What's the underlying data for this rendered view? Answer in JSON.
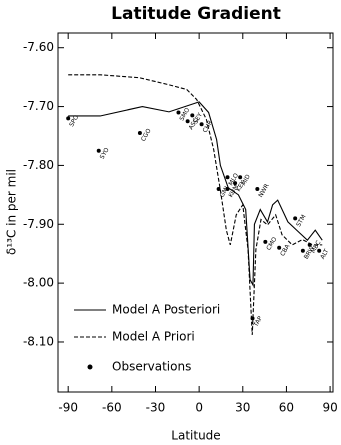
{
  "chart_data": {
    "type": "line",
    "title": "Latitude Gradient",
    "xlabel": "Latitude",
    "ylabel": "δ¹³C in per mil",
    "xlim": [
      -97,
      92
    ],
    "ylim": [
      -8.185,
      -7.575
    ],
    "xticks": [
      -90,
      -60,
      -30,
      0,
      30,
      60,
      90
    ],
    "yticks": [
      {
        "value": -7.6,
        "label": "-7.60"
      },
      {
        "value": -7.7,
        "label": "-7.70"
      },
      {
        "value": -7.8,
        "label": "-7.80"
      },
      {
        "value": -7.9,
        "label": "-7.90"
      },
      {
        "value": -8.0,
        "label": "-8.00"
      },
      {
        "value": -8.1,
        "label": "-8.10"
      }
    ],
    "legend": "lower left",
    "series": [
      {
        "name": "Model A Posteriori",
        "color": "#000000",
        "style": "solid",
        "x": [
          -90,
          -68,
          -39,
          -20.7,
          0,
          6.5,
          12,
          14.6,
          20,
          27,
          32,
          35,
          37,
          38,
          42,
          47,
          50.5,
          54,
          61,
          67,
          74.4,
          79.8,
          84.6
        ],
        "values": [
          -7.716,
          -7.716,
          -7.7,
          -7.709,
          -7.692,
          -7.71,
          -7.756,
          -7.8,
          -7.838,
          -7.85,
          -7.875,
          -7.994,
          -8.003,
          -7.9,
          -7.875,
          -7.896,
          -7.867,
          -7.859,
          -7.896,
          -7.91,
          -7.927,
          -7.91,
          -7.927
        ]
      },
      {
        "name": "Model A Priori",
        "color": "#000000",
        "style": "dashed",
        "x": [
          -90,
          -68,
          -41,
          -20.7,
          -8.5,
          -1.7,
          5,
          10,
          14.6,
          18.7,
          21.4,
          25.5,
          30,
          33.6,
          36.5,
          39,
          42.5,
          47,
          52.6,
          57,
          64,
          71,
          78,
          84.6
        ],
        "values": [
          -7.646,
          -7.646,
          -7.651,
          -7.663,
          -7.671,
          -7.688,
          -7.722,
          -7.773,
          -7.842,
          -7.91,
          -7.935,
          -7.884,
          -7.867,
          -7.943,
          -8.088,
          -7.943,
          -7.892,
          -7.901,
          -7.884,
          -7.918,
          -7.935,
          -7.926,
          -7.935,
          -7.935
        ]
      },
      {
        "name": "Observations",
        "color": "#000000",
        "style": "markers",
        "labels": [
          "SPO",
          "SYO",
          "CGO",
          "SMO",
          "ASC",
          "SEY",
          "CHR",
          "GMI",
          "KUM",
          "MLO",
          "KEY",
          "MID",
          "NWR",
          "TAP",
          "CMO",
          "CBA",
          "STM",
          "BRW",
          "MBC",
          "ALT"
        ],
        "x": [
          -90,
          -69,
          -40.7,
          -14.2,
          -7.9,
          -4.7,
          1.7,
          13.4,
          19.5,
          19.5,
          24.7,
          28.2,
          40,
          36.7,
          45.5,
          55,
          66,
          71.3,
          76,
          82.5
        ],
        "values": [
          -7.72,
          -7.775,
          -7.745,
          -7.71,
          -7.725,
          -7.715,
          -7.73,
          -7.84,
          -7.84,
          -7.82,
          -7.83,
          -7.82,
          -7.84,
          -8.06,
          -7.93,
          -7.94,
          -7.89,
          -7.945,
          -7.935,
          -7.945
        ]
      }
    ]
  }
}
